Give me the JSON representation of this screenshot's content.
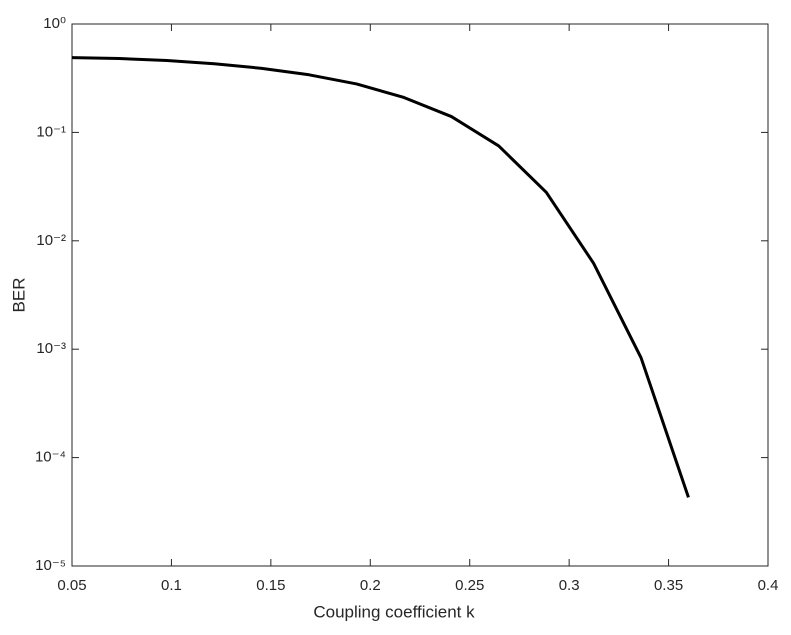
{
  "chart_data": {
    "type": "line",
    "xlabel": "Coupling coefficient k",
    "ylabel": "BER",
    "x": [
      0.05,
      0.0738,
      0.0977,
      0.1215,
      0.1454,
      0.1692,
      0.1931,
      0.2169,
      0.2408,
      0.2646,
      0.2885,
      0.3123,
      0.3362,
      0.36
    ],
    "series": [
      {
        "color": "#000000",
        "values": [
          0.49,
          0.48,
          0.46,
          0.43,
          0.39,
          0.34,
          0.28,
          0.21,
          0.14,
          0.075,
          0.028,
          0.0062,
          0.00083,
          4.3e-05
        ]
      }
    ],
    "xlim": [
      0.05,
      0.4
    ],
    "xticks": [
      0.05,
      0.1,
      0.15,
      0.2,
      0.25,
      0.3,
      0.35,
      0.4
    ],
    "ylim": [
      1e-05,
      1
    ],
    "ylog": true,
    "yticks": [
      {
        "value": 1e-05,
        "label": "10⁻⁵"
      },
      {
        "value": 0.0001,
        "label": "10⁻⁴"
      },
      {
        "value": 0.001,
        "label": "10⁻³"
      },
      {
        "value": 0.01,
        "label": "10⁻²"
      },
      {
        "value": 0.1,
        "label": "10⁻¹"
      },
      {
        "value": 1,
        "label": "10⁰"
      }
    ],
    "grid": false
  }
}
